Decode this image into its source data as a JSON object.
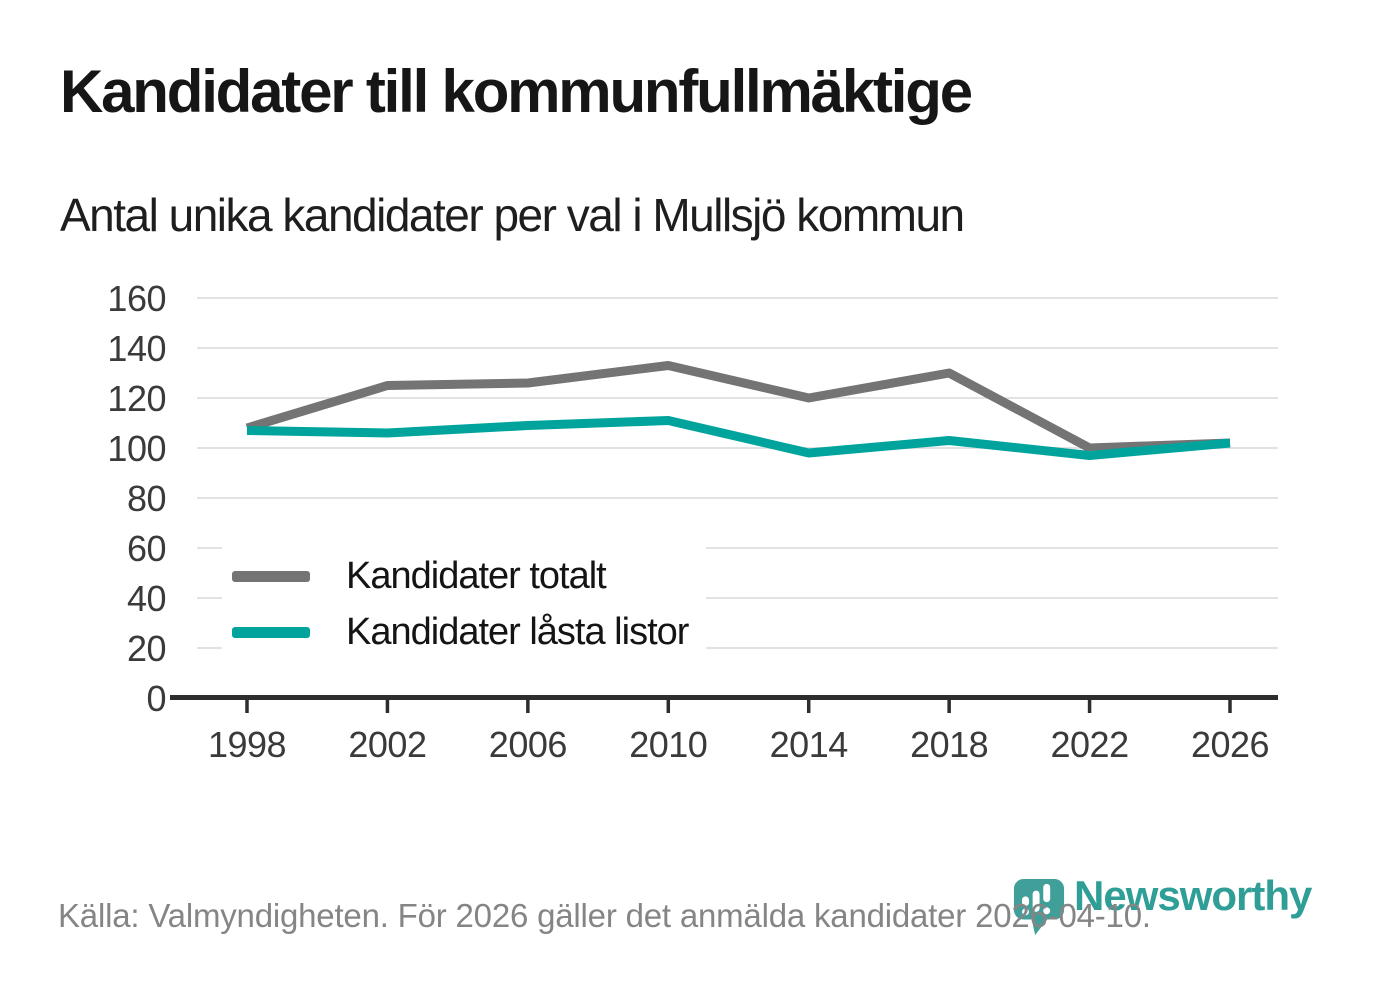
{
  "title": "Kandidater till kommunfullmäktige",
  "subtitle": "Antal unika kandidater per val i Mullsjö kommun",
  "source": "Källa: Valmyndigheten. För 2026 gäller det anmälda kandidater 2026-04-10.",
  "brand": "Newsworthy",
  "colors": {
    "series_totalt": "#747474",
    "series_lasta": "#00a49c",
    "grid": "#e2e2e2",
    "axis": "#2d2d2d",
    "tick_label": "#3a3a3a",
    "title_text": "#161616",
    "source_text": "#858585",
    "logo": "#419f99",
    "wordmark": "#2f9e96"
  },
  "chart_data": {
    "type": "line",
    "title": "Kandidater till kommunfullmäktige",
    "subtitle": "Antal unika kandidater per val i Mullsjö kommun",
    "categories": [
      "1998",
      "2002",
      "2006",
      "2010",
      "2014",
      "2018",
      "2022",
      "2026"
    ],
    "series": [
      {
        "name": "Kandidater totalt",
        "color": "#747474",
        "values": [
          108,
          125,
          126,
          133,
          120,
          130,
          100,
          102
        ]
      },
      {
        "name": "Kandidater låsta listor",
        "color": "#00a49c",
        "values": [
          107,
          106,
          109,
          111,
          98,
          103,
          97,
          102
        ]
      }
    ],
    "xlabel": "",
    "ylabel": "",
    "ylim": [
      0,
      160
    ],
    "ytick_step": 20,
    "grid": "horizontal",
    "legend_position": "inside-left"
  }
}
